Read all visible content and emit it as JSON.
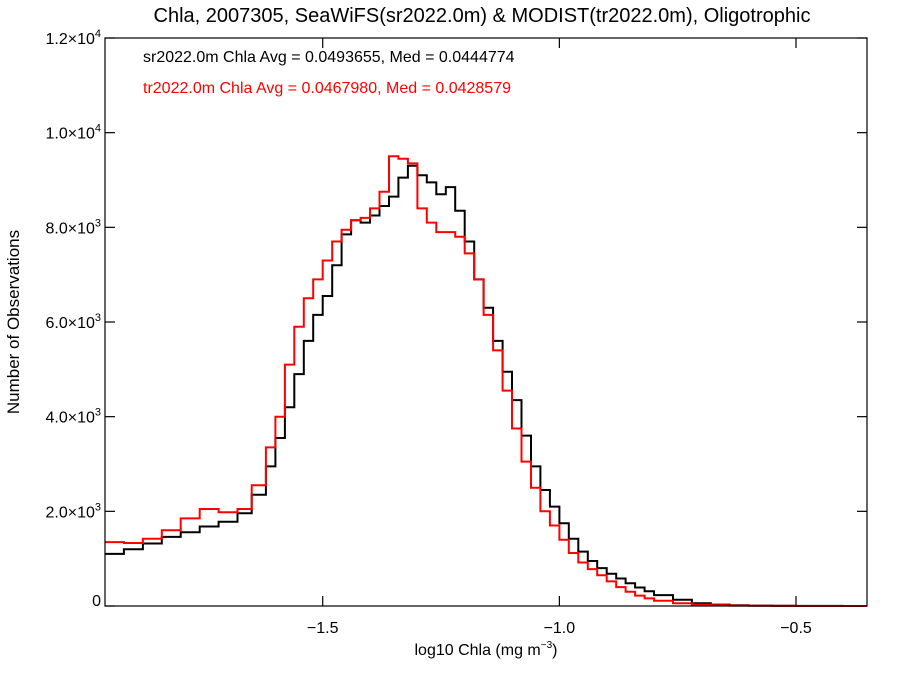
{
  "chart_data": {
    "type": "line",
    "title": "Chla, 2007305, SeaWiFS(sr2022.0m) & MODIST(tr2022.0m), Oligotrophic",
    "xlabel": "log10 Chla (mg m",
    "xlabel_sup": "−3",
    "xlabel_end": ")",
    "ylabel": "Number of Observations",
    "xlim": [
      -1.96,
      -0.35
    ],
    "ylim": [
      0,
      12000
    ],
    "x_ticks": [
      {
        "value": -1.5,
        "label": "−1.5"
      },
      {
        "value": -1.0,
        "label": "−1.0"
      },
      {
        "value": -0.5,
        "label": "−0.5"
      }
    ],
    "y_ticks": [
      {
        "value": 0,
        "mant": "0",
        "exp": ""
      },
      {
        "value": 2000,
        "mant": "2.0×10",
        "exp": "3"
      },
      {
        "value": 4000,
        "mant": "4.0×10",
        "exp": "3"
      },
      {
        "value": 6000,
        "mant": "6.0×10",
        "exp": "3"
      },
      {
        "value": 8000,
        "mant": "8.0×10",
        "exp": "3"
      },
      {
        "value": 10000,
        "mant": "1.0×10",
        "exp": "4"
      },
      {
        "value": 12000,
        "mant": "1.2×10",
        "exp": "4"
      }
    ],
    "grid": false,
    "annotations": [
      {
        "text": "sr2022.0m Chla Avg = 0.0493655, Med = 0.0444774",
        "color": "#000000"
      },
      {
        "text": "tr2022.0m Chla Avg = 0.0467980, Med = 0.0428579",
        "color": "#ff0000"
      }
    ],
    "series": [
      {
        "color": "#000000",
        "style": "step",
        "x": [
          -1.96,
          -1.92,
          -1.88,
          -1.84,
          -1.8,
          -1.76,
          -1.72,
          -1.68,
          -1.65,
          -1.62,
          -1.6,
          -1.58,
          -1.56,
          -1.54,
          -1.52,
          -1.5,
          -1.48,
          -1.46,
          -1.44,
          -1.42,
          -1.4,
          -1.38,
          -1.36,
          -1.34,
          -1.32,
          -1.3,
          -1.28,
          -1.26,
          -1.24,
          -1.22,
          -1.2,
          -1.18,
          -1.16,
          -1.14,
          -1.12,
          -1.1,
          -1.08,
          -1.06,
          -1.04,
          -1.02,
          -1.0,
          -0.98,
          -0.96,
          -0.94,
          -0.92,
          -0.9,
          -0.88,
          -0.86,
          -0.84,
          -0.82,
          -0.8,
          -0.76,
          -0.72,
          -0.68,
          -0.64,
          -0.6,
          -0.55,
          -0.5,
          -0.45,
          -0.4,
          -0.35
        ],
        "values": [
          1100,
          1200,
          1320,
          1460,
          1560,
          1680,
          1780,
          1960,
          2350,
          2950,
          3550,
          4200,
          4900,
          5600,
          6150,
          6550,
          7200,
          7850,
          8150,
          8100,
          8250,
          8450,
          8650,
          9050,
          9300,
          9100,
          8950,
          8700,
          8850,
          8350,
          7700,
          6900,
          6300,
          5600,
          4950,
          4350,
          3600,
          2950,
          2450,
          2100,
          1750,
          1420,
          1150,
          950,
          800,
          680,
          580,
          480,
          390,
          310,
          230,
          130,
          60,
          30,
          15,
          8,
          5,
          3,
          2,
          1,
          0
        ]
      },
      {
        "color": "#ff0000",
        "style": "step",
        "x": [
          -1.96,
          -1.92,
          -1.88,
          -1.84,
          -1.8,
          -1.76,
          -1.72,
          -1.68,
          -1.65,
          -1.62,
          -1.6,
          -1.58,
          -1.56,
          -1.54,
          -1.52,
          -1.5,
          -1.48,
          -1.46,
          -1.44,
          -1.42,
          -1.4,
          -1.38,
          -1.36,
          -1.34,
          -1.32,
          -1.3,
          -1.28,
          -1.26,
          -1.24,
          -1.22,
          -1.2,
          -1.18,
          -1.16,
          -1.14,
          -1.12,
          -1.1,
          -1.08,
          -1.06,
          -1.04,
          -1.02,
          -1.0,
          -0.98,
          -0.96,
          -0.94,
          -0.92,
          -0.9,
          -0.88,
          -0.86,
          -0.84,
          -0.82,
          -0.8,
          -0.76,
          -0.72,
          -0.68,
          -0.64,
          -0.6,
          -0.55,
          -0.5,
          -0.45,
          -0.4,
          -0.35
        ],
        "values": [
          1350,
          1330,
          1420,
          1600,
          1850,
          2050,
          1980,
          2050,
          2550,
          3350,
          4000,
          5100,
          5900,
          6500,
          6900,
          7300,
          7700,
          7950,
          8150,
          8200,
          8400,
          8750,
          9500,
          9450,
          9350,
          8400,
          8100,
          7900,
          7900,
          7800,
          7450,
          6900,
          6150,
          5400,
          4550,
          3750,
          3050,
          2500,
          2000,
          1700,
          1400,
          1120,
          920,
          780,
          650,
          520,
          400,
          300,
          220,
          160,
          110,
          60,
          30,
          15,
          8,
          4,
          2,
          1,
          0,
          0,
          0
        ]
      }
    ]
  }
}
